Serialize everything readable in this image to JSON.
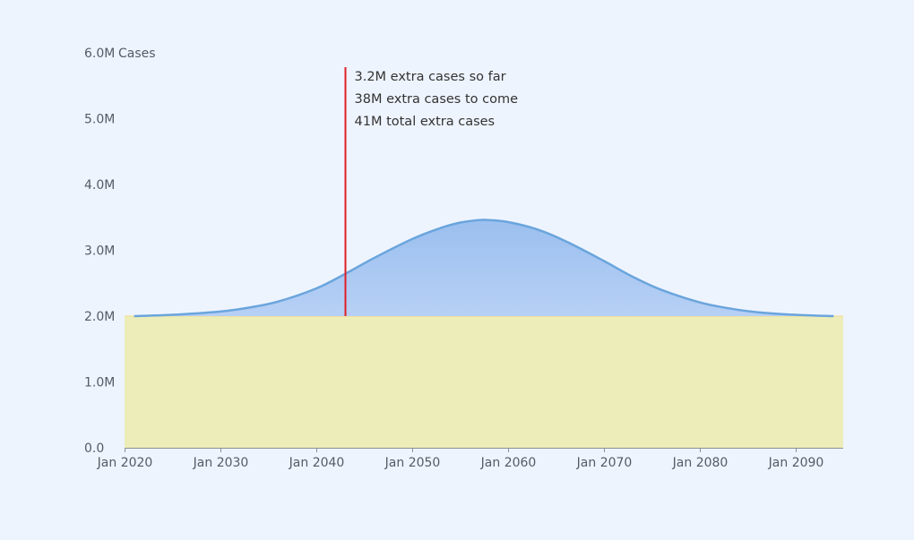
{
  "chart_data": {
    "type": "area",
    "title": "",
    "xlabel": "",
    "ylabel": "",
    "y_unit_label": "Cases",
    "xlim": [
      2020,
      2095
    ],
    "ylim": [
      0,
      6000000
    ],
    "y_ticks": [
      {
        "value": 0,
        "label": "0.0"
      },
      {
        "value": 1000000,
        "label": "1.0M"
      },
      {
        "value": 2000000,
        "label": "2.0M"
      },
      {
        "value": 3000000,
        "label": "3.0M"
      },
      {
        "value": 4000000,
        "label": "4.0M"
      },
      {
        "value": 5000000,
        "label": "5.0M"
      },
      {
        "value": 6000000,
        "label": "6.0M"
      }
    ],
    "x_ticks": [
      {
        "value": 2020,
        "label": "Jan 2020"
      },
      {
        "value": 2030,
        "label": "Jan 2030"
      },
      {
        "value": 2040,
        "label": "Jan 2040"
      },
      {
        "value": 2050,
        "label": "Jan 2050"
      },
      {
        "value": 2060,
        "label": "Jan 2060"
      },
      {
        "value": 2070,
        "label": "Jan 2070"
      },
      {
        "value": 2080,
        "label": "Jan 2080"
      },
      {
        "value": 2090,
        "label": "Jan 2090"
      }
    ],
    "grid": false,
    "baseline": {
      "value": 2000000,
      "from": 2020,
      "to": 2095,
      "color": "#ecedb9"
    },
    "series": [
      {
        "color": "#6aa5dd",
        "fill": "#a7c6f2",
        "x": [
          2021,
          2025,
          2030,
          2033,
          2036,
          2040,
          2043,
          2046,
          2050,
          2053,
          2055,
          2057,
          2058,
          2060,
          2063,
          2066,
          2070,
          2073,
          2076,
          2080,
          2083,
          2086,
          2090,
          2094
        ],
        "y": [
          2000000,
          2020000,
          2070000,
          2130000,
          2220000,
          2420000,
          2640000,
          2880000,
          3170000,
          3340000,
          3420000,
          3460000,
          3460000,
          3430000,
          3320000,
          3140000,
          2840000,
          2600000,
          2400000,
          2210000,
          2120000,
          2060000,
          2020000,
          2000000
        ]
      }
    ],
    "marker": {
      "x": 2043,
      "color": "#e01f26"
    },
    "annotations": [
      "3.2M extra cases so far",
      "38M extra cases to come",
      "41M total extra cases"
    ]
  }
}
